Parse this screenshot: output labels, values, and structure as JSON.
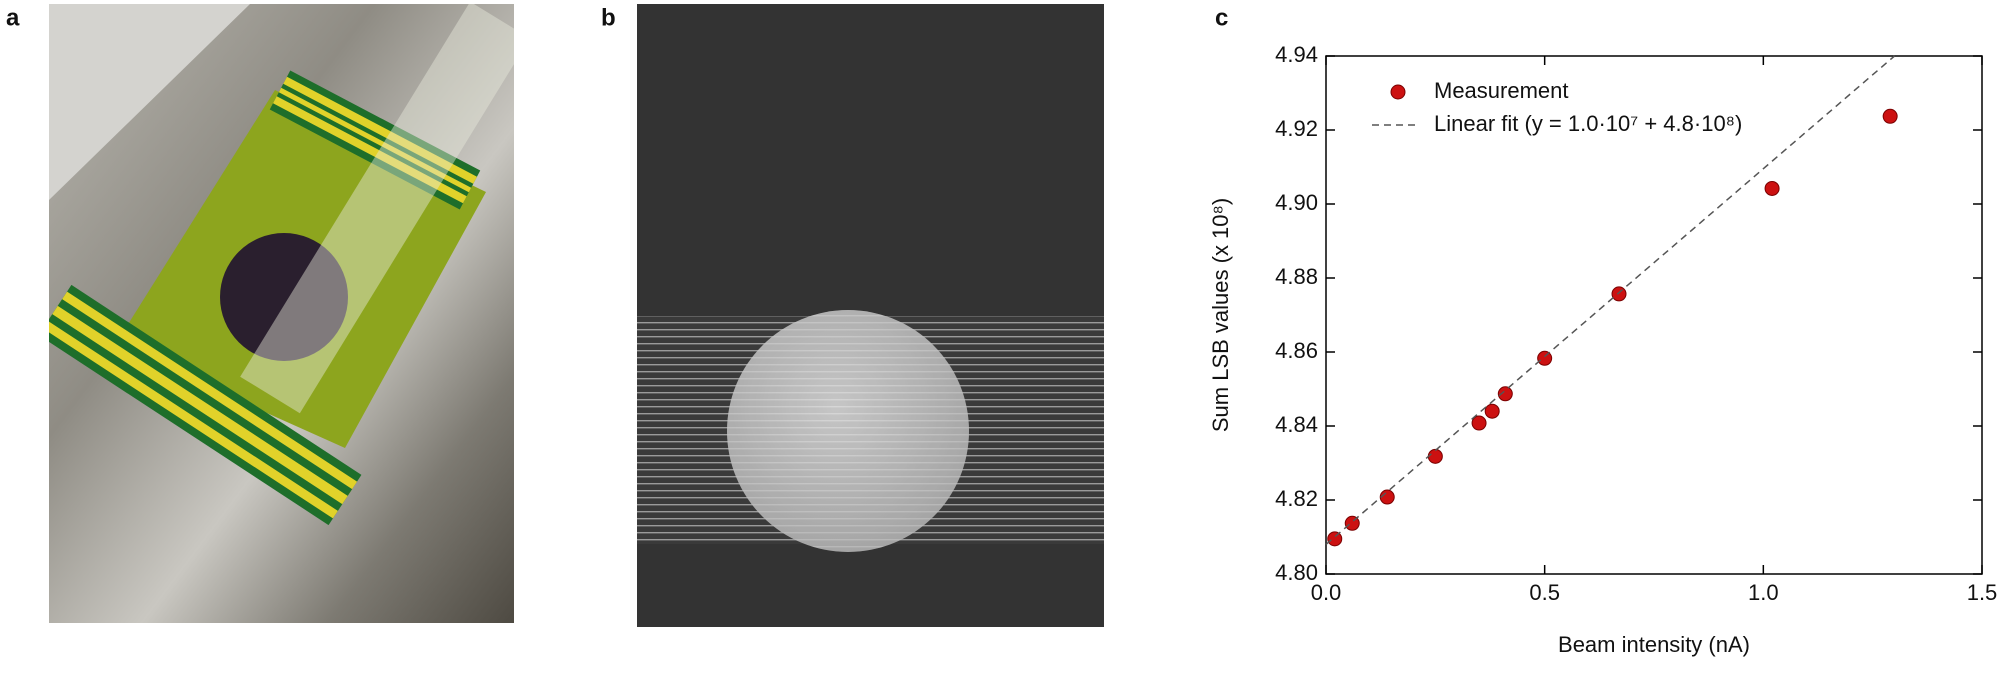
{
  "panels": [
    "a",
    "b",
    "c"
  ],
  "chart_data": {
    "type": "scatter",
    "x_label": "Beam intensity (nA)",
    "y_label": "Sum LSB values (x 10⁸)",
    "series": [
      {
        "name": "Measurement",
        "color": "#cc1111",
        "type": "scatter",
        "x": [
          0.02,
          0.06,
          0.14,
          0.25,
          0.35,
          0.38,
          0.41,
          0.5,
          0.67,
          1.02,
          1.29
        ],
        "values": [
          4.8095,
          4.8137,
          4.8208,
          4.8318,
          4.8408,
          4.844,
          4.8487,
          4.8583,
          4.8757,
          4.9042,
          4.9237
        ]
      },
      {
        "name": "Linear fit (y = 1.0·10⁷ + 4.8·10⁸)",
        "color": "#555555",
        "type": "line",
        "x": [
          0,
          1.3
        ],
        "values": [
          4.808,
          4.94
        ]
      }
    ],
    "xlim": [
      0,
      1.5
    ],
    "xticks": [
      {
        "value": 0,
        "label": "0.0"
      },
      0.5,
      {
        "value": 1,
        "label": "1.0"
      },
      1.5
    ],
    "ylim": [
      4.8,
      4.94
    ],
    "yticks": [
      {
        "value": 4.8,
        "label": "4.80"
      },
      4.82,
      4.84,
      4.86,
      4.88,
      {
        "value": 4.9,
        "label": "4.90"
      },
      4.92,
      4.94
    ]
  }
}
